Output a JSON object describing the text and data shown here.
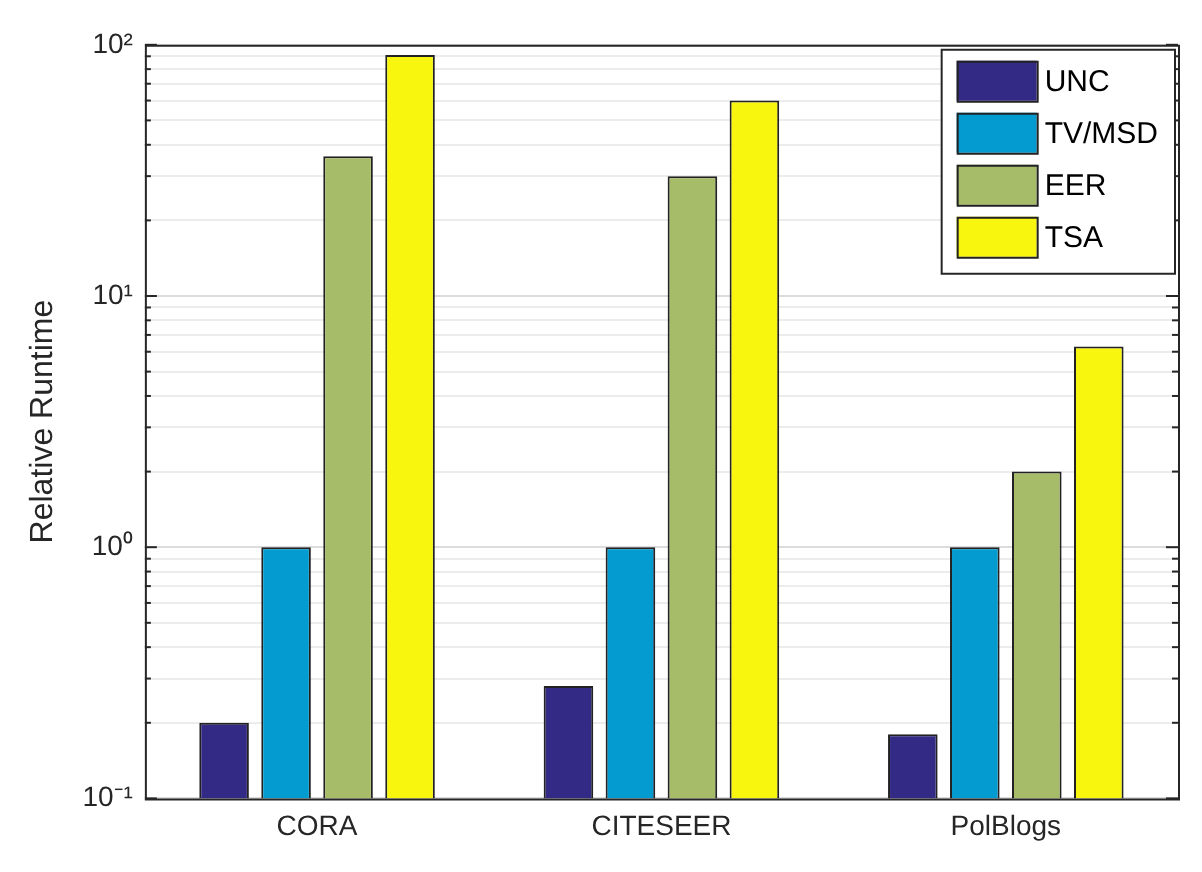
{
  "chart_data": {
    "type": "bar",
    "ylabel": "Relative Runtime",
    "categories": [
      "CORA",
      "CITESEER",
      "PolBlogs"
    ],
    "series": [
      {
        "name": "UNC",
        "color": "#332a85",
        "values": [
          0.2,
          0.28,
          0.18
        ]
      },
      {
        "name": "TV/MSD",
        "color": "#049bd0",
        "values": [
          1,
          1,
          1
        ]
      },
      {
        "name": "EER",
        "color": "#a6bc68",
        "values": [
          36,
          30,
          2
        ]
      },
      {
        "name": "TSA",
        "color": "#f8f60e",
        "values": [
          91,
          60,
          6.3
        ]
      }
    ],
    "log": "y",
    "ylim": [
      0.1,
      100
    ],
    "yticks": [
      {
        "value": 0.1,
        "label": "10⁻¹"
      },
      {
        "value": 0.2,
        "label": null
      },
      {
        "value": 0.3,
        "label": null
      },
      {
        "value": 0.4,
        "label": null
      },
      {
        "value": 0.5,
        "label": null
      },
      {
        "value": 0.6,
        "label": null
      },
      {
        "value": 0.7,
        "label": null
      },
      {
        "value": 0.8,
        "label": null
      },
      {
        "value": 0.9,
        "label": null
      },
      {
        "value": 1,
        "label": "10⁰"
      },
      {
        "value": 2,
        "label": null
      },
      {
        "value": 3,
        "label": null
      },
      {
        "value": 4,
        "label": null
      },
      {
        "value": 5,
        "label": null
      },
      {
        "value": 6,
        "label": null
      },
      {
        "value": 7,
        "label": null
      },
      {
        "value": 8,
        "label": null
      },
      {
        "value": 9,
        "label": null
      },
      {
        "value": 10,
        "label": "10¹"
      },
      {
        "value": 20,
        "label": null
      },
      {
        "value": 30,
        "label": null
      },
      {
        "value": 40,
        "label": null
      },
      {
        "value": 50,
        "label": null
      },
      {
        "value": 60,
        "label": null
      },
      {
        "value": 70,
        "label": null
      },
      {
        "value": 80,
        "label": null
      },
      {
        "value": 90,
        "label": null
      },
      {
        "value": 100,
        "label": "10²"
      }
    ],
    "grid": "y",
    "legend": "top right"
  }
}
